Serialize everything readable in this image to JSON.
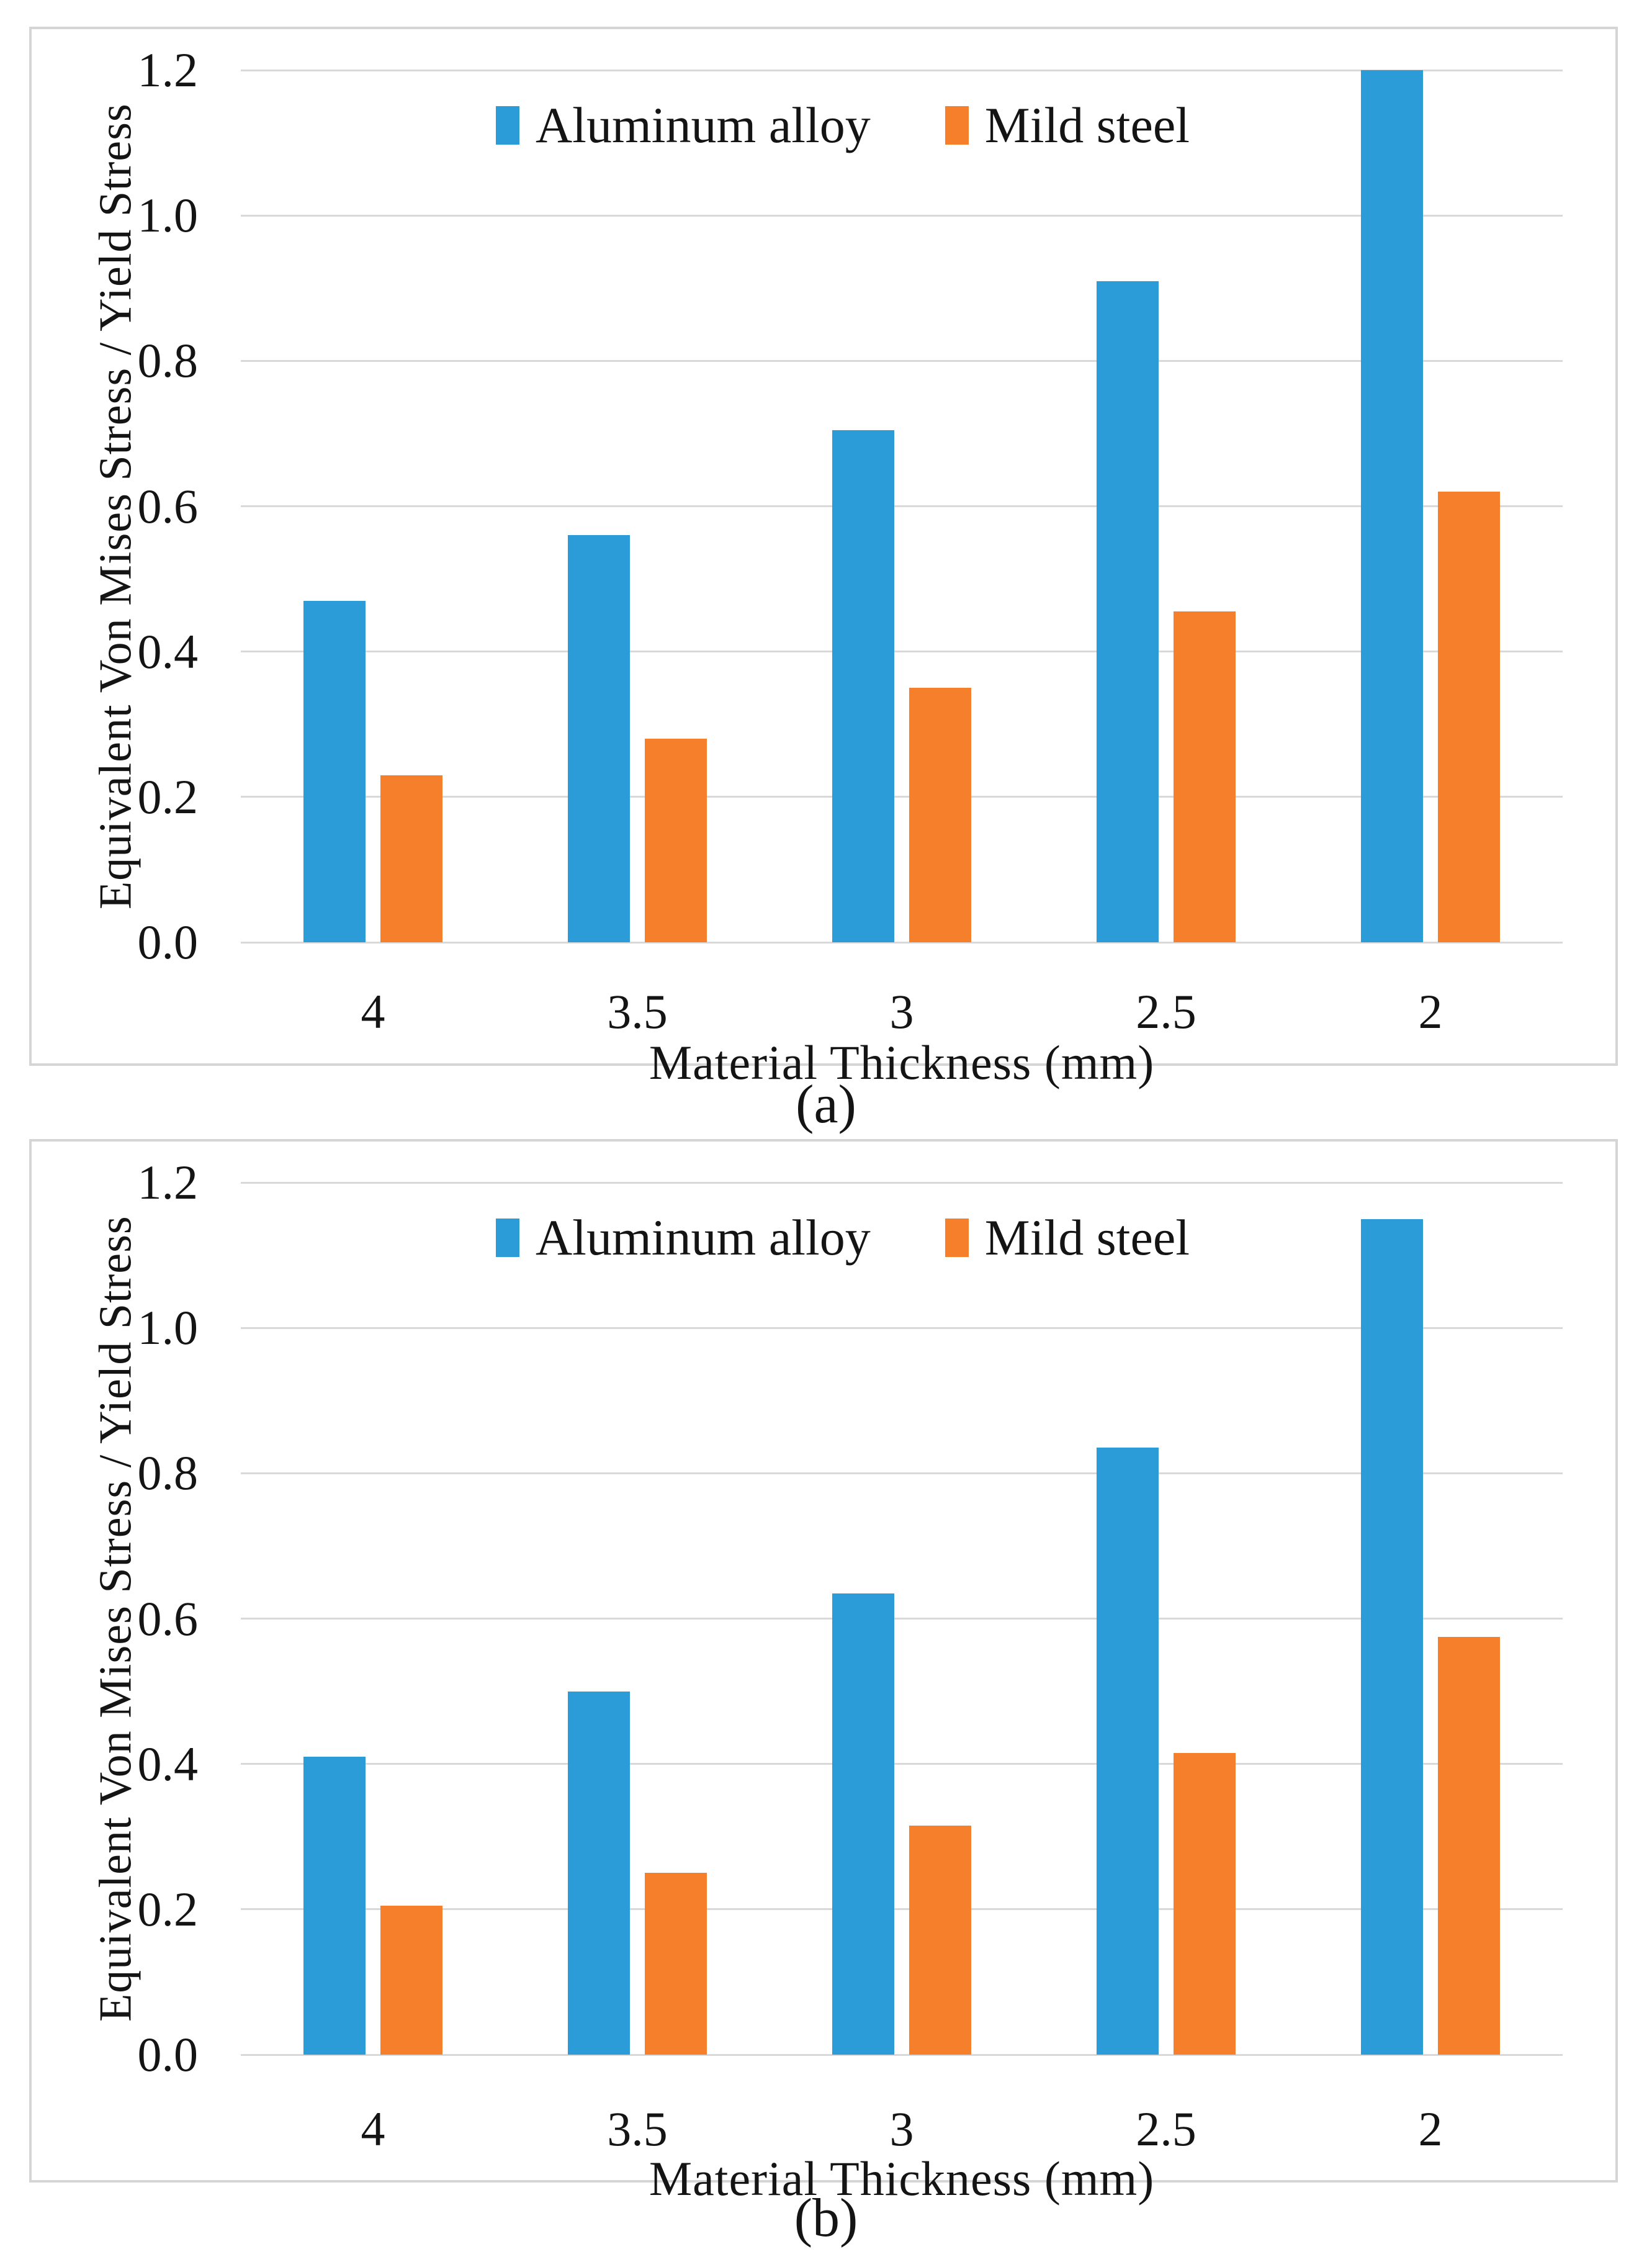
{
  "figure": {
    "background": "#ffffff",
    "frame_color": "#d5d5d5",
    "gridline_color": "#d9d9d9",
    "text_color": "#141414"
  },
  "chart_data": [
    {
      "id": "a",
      "type": "bar",
      "caption": "(a)",
      "categories": [
        "4",
        "3.5",
        "3",
        "2.5",
        "2"
      ],
      "series": [
        {
          "name": "Aluminum alloy",
          "color": "#2B9CD8",
          "values": [
            0.47,
            0.56,
            0.705,
            0.91,
            1.2
          ]
        },
        {
          "name": "Mild steel",
          "color": "#F57F2B",
          "values": [
            0.23,
            0.28,
            0.35,
            0.455,
            0.62
          ]
        }
      ],
      "xlabel": "Material Thickness (mm)",
      "ylabel": "Equivalent Von Mises Stress / Yield Stress",
      "ylim": [
        0,
        1.2
      ],
      "yticks": [
        "0.0",
        "0.2",
        "0.4",
        "0.6",
        "0.8",
        "1.0",
        "1.2"
      ],
      "grid": "horizontal",
      "legend_position": "top-center"
    },
    {
      "id": "b",
      "type": "bar",
      "caption": "(b)",
      "categories": [
        "4",
        "3.5",
        "3",
        "2.5",
        "2"
      ],
      "series": [
        {
          "name": "Aluminum alloy",
          "color": "#2B9CD8",
          "values": [
            0.41,
            0.5,
            0.635,
            0.835,
            1.15
          ]
        },
        {
          "name": "Mild steel",
          "color": "#F57F2B",
          "values": [
            0.205,
            0.25,
            0.315,
            0.415,
            0.575
          ]
        }
      ],
      "xlabel": "Material Thickness (mm)",
      "ylabel": "Equivalent Von Mises Stress / Yield Stress",
      "ylim": [
        0,
        1.2
      ],
      "yticks": [
        "0.0",
        "0.2",
        "0.4",
        "0.6",
        "0.8",
        "1.0",
        "1.2"
      ],
      "grid": "horizontal",
      "legend_position": "top-center"
    }
  ]
}
